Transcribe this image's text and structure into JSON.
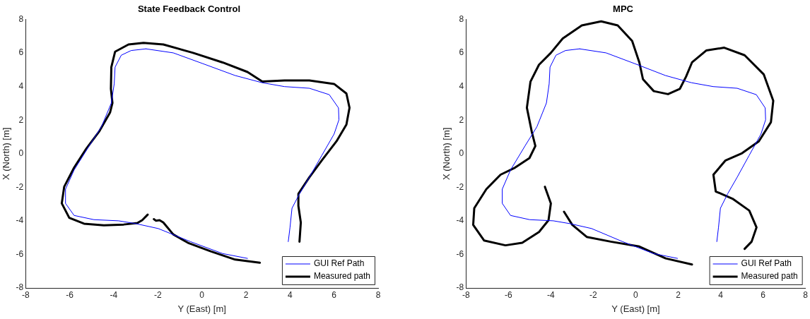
{
  "chart_data": [
    {
      "type": "line",
      "title": "State Feedback Control",
      "xlabel": "Y (East) [m]",
      "ylabel": "X (North) [m]",
      "xlim": [
        -8,
        8
      ],
      "ylim": [
        -8,
        8
      ],
      "xticks": [
        -8,
        -6,
        -4,
        -2,
        0,
        2,
        4,
        6,
        8
      ],
      "yticks": [
        -8,
        -6,
        -4,
        -2,
        0,
        2,
        4,
        6,
        8
      ],
      "grid": false,
      "legend": "bottom right",
      "marker": "none",
      "line_style": "solid",
      "series": [
        {
          "name": "GUI Ref Path",
          "color": "#0000ff",
          "x": [
            -2.54,
            -1.3,
            0.04,
            1.51,
            2.74,
            3.75,
            4.88,
            5.78,
            6.2,
            6.22,
            6.0,
            5.44,
            4.88,
            4.43,
            4.09,
            4.0,
            3.92,
            null,
            2.07,
            0.94,
            -0.52,
            -1.98,
            -2.99,
            -3.78,
            -4.9,
            -5.8,
            -6.19,
            -6.19,
            -5.8,
            -5.12,
            -4.56,
            -4.11,
            -3.98,
            -3.94,
            -3.66,
            -3.21,
            -2.54
          ],
          "values": [
            6.25,
            6.01,
            5.37,
            4.66,
            4.23,
            4.0,
            3.9,
            3.52,
            2.73,
            2.02,
            1.17,
            -0.11,
            -1.4,
            -2.39,
            -3.25,
            -4.39,
            -5.24,
            null,
            -6.24,
            -5.95,
            -5.24,
            -4.46,
            -4.17,
            -4.0,
            -3.93,
            -3.68,
            -2.96,
            -2.11,
            -0.97,
            0.46,
            1.6,
            3.02,
            4.16,
            5.16,
            5.87,
            6.15,
            6.25
          ]
        },
        {
          "name": "Measured path",
          "color": "#000000",
          "x": [
            -2.46,
            -2.71,
            -2.93,
            -3.55,
            -4.45,
            -5.35,
            -6.02,
            -6.36,
            -6.25,
            -5.8,
            -5.24,
            -4.67,
            -4.17,
            -4.06,
            -4.13,
            -4.11,
            -3.94,
            -3.33,
            -2.65,
            -1.75,
            -0.4,
            0.94,
            2.07,
            2.74,
            3.75,
            4.88,
            6.0,
            6.56,
            6.7,
            6.56,
            6.11,
            5.44,
            4.88,
            4.38,
            4.38,
            4.49,
            4.43,
            null,
            2.63,
            1.51,
            0.38,
            -0.63,
            -1.3,
            -1.75,
            -1.92,
            -2.09,
            -2.18
          ],
          "values": [
            -3.63,
            -3.96,
            -4.13,
            -4.22,
            -4.27,
            -4.17,
            -3.82,
            -2.96,
            -1.97,
            -0.83,
            0.31,
            1.31,
            2.45,
            3.02,
            3.87,
            5.16,
            6.08,
            6.51,
            6.61,
            6.51,
            6.01,
            5.44,
            4.87,
            4.3,
            4.37,
            4.37,
            4.16,
            3.59,
            2.74,
            1.74,
            0.74,
            -0.4,
            -1.4,
            -2.39,
            -3.11,
            -4.1,
            -5.24,
            null,
            -6.5,
            -6.31,
            -5.81,
            -5.31,
            -4.81,
            -4.1,
            -3.96,
            -3.99,
            -3.9
          ]
        }
      ]
    },
    {
      "type": "line",
      "title": "MPC",
      "xlabel": "Y (East) [m]",
      "ylabel": "X (North) [m]",
      "xlim": [
        -8,
        8
      ],
      "ylim": [
        -8,
        8
      ],
      "xticks": [
        -8,
        -6,
        -4,
        -2,
        0,
        2,
        4,
        6,
        8
      ],
      "yticks": [
        -8,
        -6,
        -4,
        -2,
        0,
        2,
        4,
        6,
        8
      ],
      "grid": false,
      "legend": "bottom right",
      "marker": "none",
      "line_style": "solid",
      "series": [
        {
          "name": "GUI Ref Path",
          "color": "#0000ff",
          "x": [
            -2.65,
            -1.4,
            -0.05,
            1.4,
            2.63,
            3.65,
            4.78,
            5.68,
            6.1,
            6.12,
            5.9,
            5.34,
            4.78,
            4.33,
            3.99,
            3.9,
            3.82,
            null,
            1.97,
            0.84,
            -0.62,
            -2.08,
            -3.09,
            -3.88,
            -5.0,
            -5.9,
            -6.29,
            -6.29,
            -5.9,
            -5.22,
            -4.66,
            -4.21,
            -4.08,
            -4.04,
            -3.76,
            -3.31,
            -2.65
          ],
          "values": [
            6.25,
            6.01,
            5.37,
            4.66,
            4.23,
            4.0,
            3.9,
            3.52,
            2.73,
            2.02,
            1.17,
            -0.11,
            -1.4,
            -2.39,
            -3.25,
            -4.39,
            -5.24,
            null,
            -6.24,
            -5.95,
            -5.24,
            -4.46,
            -4.17,
            -4.0,
            -3.93,
            -3.68,
            -2.96,
            -2.11,
            -0.97,
            0.46,
            1.6,
            3.02,
            4.16,
            5.16,
            5.87,
            6.15,
            6.25
          ]
        },
        {
          "name": "Measured path",
          "color": "#000000",
          "x": [
            -4.28,
            -4.0,
            -4.11,
            -4.56,
            -5.35,
            -6.14,
            -7.15,
            -7.66,
            -7.61,
            -7.04,
            -6.37,
            -5.69,
            -5.01,
            -4.73,
            -4.9,
            -5.13,
            -4.96,
            -4.56,
            -4.0,
            -3.44,
            -2.54,
            -1.63,
            -0.85,
            -0.17,
            0.17,
            0.34,
            0.85,
            1.52,
            2.08,
            2.37,
            2.65,
            3.32,
            4.17,
            5.13,
            6.03,
            6.48,
            6.37,
            5.8,
            5.01,
            4.23,
            3.66,
            3.77,
            4.56,
            5.35,
            5.69,
            5.46,
            5.13,
            null,
            2.65,
            1.41,
            0.17,
            -1.18,
            -2.31,
            -2.99,
            -3.38
          ],
          "values": [
            -1.97,
            -2.96,
            -3.96,
            -4.67,
            -5.31,
            -5.46,
            -5.17,
            -4.24,
            -3.25,
            -2.11,
            -1.25,
            -0.83,
            -0.26,
            0.46,
            1.31,
            2.74,
            4.3,
            5.3,
            6.01,
            6.87,
            7.65,
            7.89,
            7.65,
            6.72,
            5.44,
            4.44,
            3.73,
            3.55,
            3.87,
            4.59,
            5.44,
            6.15,
            6.32,
            5.87,
            4.73,
            3.16,
            1.88,
            0.74,
            0.03,
            -0.4,
            -1.25,
            -2.25,
            -2.68,
            -3.39,
            -4.39,
            -5.24,
            -5.67,
            null,
            -6.6,
            -6.24,
            -5.53,
            -5.24,
            -4.96,
            -4.24,
            -3.46
          ]
        }
      ]
    }
  ]
}
